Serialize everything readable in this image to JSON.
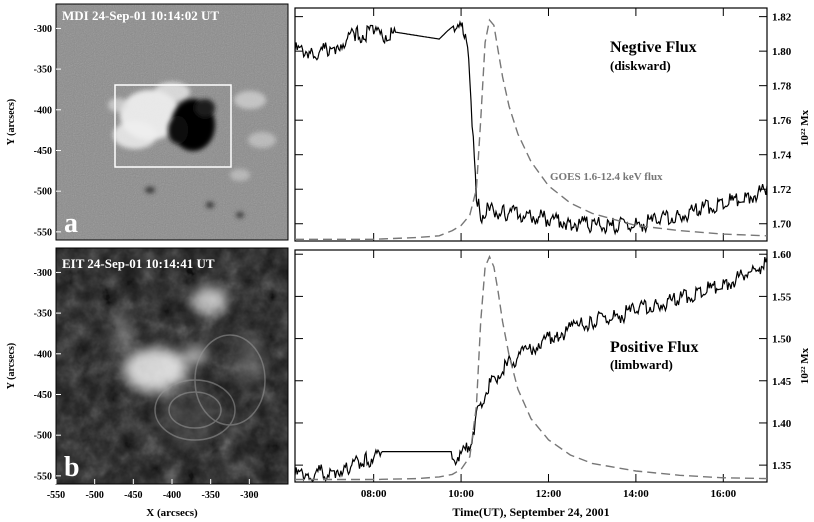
{
  "chart_data": [
    {
      "type": "image",
      "panel_letter": "a",
      "title": "MDI 24-Sep-01 10:14:02 UT",
      "ylabel": "Y (arcsecs)",
      "yticks": [
        "-300",
        "-350",
        "-400",
        "-450",
        "-500",
        "-550"
      ],
      "ylim": [
        -560,
        -270
      ],
      "xlim": [
        -550,
        -250
      ]
    },
    {
      "type": "image",
      "panel_letter": "b",
      "title": "EIT 24-Sep-01 10:14:41 UT",
      "ylabel": "Y (arcsecs)",
      "yticks": [
        "-300",
        "-350",
        "-400",
        "-450",
        "-500",
        "-550"
      ],
      "xlabel": "X (arcsecs)",
      "xticks": [
        "-550",
        "-500",
        "-450",
        "-400",
        "-350",
        "-300"
      ],
      "ylim": [
        -560,
        -270
      ],
      "xlim": [
        -550,
        -250
      ]
    },
    {
      "type": "line",
      "title": "Negtive Flux",
      "subtitle": "(diskward)",
      "ylabel": "10²² Mx",
      "yticks": [
        "1.70",
        "1.72",
        "1.74",
        "1.76",
        "1.78",
        "1.80",
        "1.82"
      ],
      "ylim": [
        1.69,
        1.825
      ],
      "xlim": [
        6.2,
        17.0
      ],
      "goes_label": "GOES 1.6-12.4 keV flux",
      "series": [
        {
          "style": "solid",
          "x": [
            6.2,
            6.6,
            7.0,
            7.3,
            7.6,
            8.0,
            8.5,
            9.0,
            9.5,
            9.7,
            9.85,
            10.05,
            10.1,
            10.2,
            10.28,
            10.35,
            10.45,
            10.6,
            11.0,
            11.5,
            12.0,
            12.5,
            13.0,
            13.5,
            14.0,
            14.5,
            15.0,
            15.5,
            16.0,
            16.5,
            17.0
          ],
          "y": [
            1.803,
            1.802,
            1.803,
            1.808,
            1.812,
            1.813,
            1.811,
            1.809,
            1.807,
            1.812,
            1.815,
            1.814,
            1.81,
            1.79,
            1.75,
            1.72,
            1.707,
            1.71,
            1.709,
            1.708,
            1.705,
            1.703,
            1.702,
            1.701,
            1.702,
            1.704,
            1.707,
            1.711,
            1.714,
            1.718,
            1.722
          ]
        },
        {
          "style": "dashed",
          "name": "GOES 1.6-12.4 keV flux",
          "x": [
            6.2,
            8.0,
            9.0,
            9.5,
            9.8,
            10.0,
            10.2,
            10.35,
            10.45,
            10.55,
            10.65,
            10.75,
            10.85,
            10.95,
            11.1,
            11.3,
            11.6,
            12.0,
            12.5,
            13.0,
            14.0,
            15.0,
            16.0,
            17.0
          ],
          "y": [
            1.691,
            1.691,
            1.692,
            1.693,
            1.696,
            1.699,
            1.705,
            1.72,
            1.76,
            1.805,
            1.818,
            1.815,
            1.8,
            1.785,
            1.768,
            1.752,
            1.736,
            1.722,
            1.712,
            1.706,
            1.699,
            1.696,
            1.694,
            1.693
          ]
        }
      ]
    },
    {
      "type": "line",
      "title": "Positive Flux",
      "subtitle": "(limbward)",
      "ylabel": "10²² Mx",
      "yticks": [
        "1.35",
        "1.40",
        "1.45",
        "1.50",
        "1.55",
        "1.60"
      ],
      "ylim": [
        1.33,
        1.605
      ],
      "xlabel": "Time(UT), September 24, 2001",
      "xticks": [
        "08:00",
        "10:00",
        "12:00",
        "14:00",
        "16:00"
      ],
      "xtick_values": [
        8,
        10,
        12,
        14,
        16
      ],
      "xlim": [
        6.2,
        17.0
      ],
      "series": [
        {
          "style": "solid",
          "x": [
            6.2,
            6.5,
            7.0,
            7.4,
            7.8,
            8.0,
            8.2,
            8.6,
            9.0,
            9.4,
            9.6,
            9.8,
            10.0,
            10.2,
            10.4,
            10.6,
            10.8,
            11.0,
            11.2,
            11.5,
            11.8,
            12.2,
            12.6,
            13.0,
            13.5,
            14.0,
            14.5,
            15.0,
            15.5,
            16.0,
            16.5,
            17.0
          ],
          "y": [
            1.343,
            1.345,
            1.347,
            1.352,
            1.36,
            1.365,
            1.366,
            1.366,
            1.366,
            1.366,
            1.366,
            1.366,
            1.364,
            1.38,
            1.42,
            1.448,
            1.46,
            1.47,
            1.48,
            1.49,
            1.5,
            1.51,
            1.518,
            1.525,
            1.531,
            1.538,
            1.545,
            1.552,
            1.56,
            1.57,
            1.58,
            1.596
          ]
        },
        {
          "style": "dashed",
          "x": [
            6.2,
            8.0,
            9.0,
            9.5,
            9.8,
            10.0,
            10.2,
            10.35,
            10.45,
            10.55,
            10.65,
            10.75,
            10.85,
            10.95,
            11.1,
            11.3,
            11.6,
            12.0,
            12.5,
            13.0,
            14.0,
            15.0,
            16.0,
            17.0
          ],
          "y": [
            1.333,
            1.333,
            1.334,
            1.336,
            1.339,
            1.345,
            1.36,
            1.42,
            1.52,
            1.585,
            1.597,
            1.585,
            1.555,
            1.52,
            1.48,
            1.44,
            1.405,
            1.38,
            1.362,
            1.352,
            1.343,
            1.338,
            1.335,
            1.334
          ]
        }
      ]
    }
  ],
  "colors": {
    "solid_line": "#000000",
    "dashed_line": "#777777",
    "goes_label": "#777777",
    "frame": "#000000",
    "image_text": "#ffffff"
  }
}
